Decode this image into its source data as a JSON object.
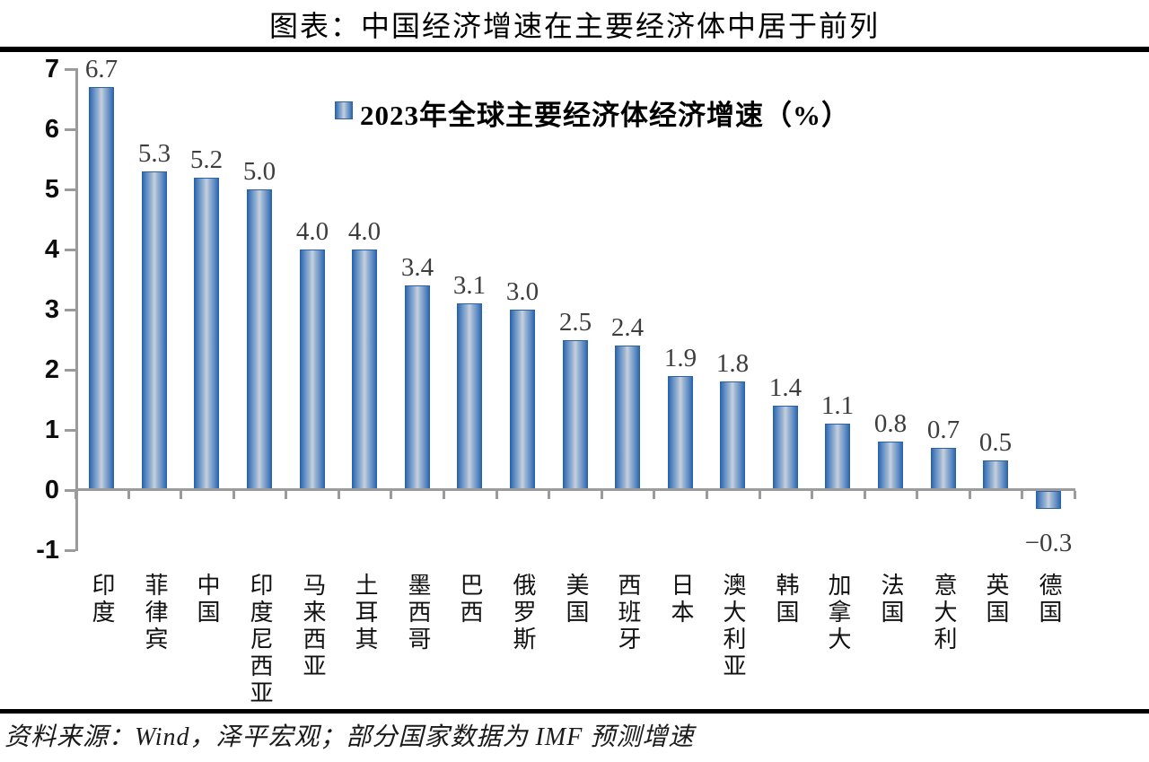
{
  "page_title": "图表：中国经济增速在主要经济体中居于前列",
  "chart_data": {
    "type": "bar",
    "title": "图表：中国经济增速在主要经济体中居于前列",
    "legend": "2023年全球主要经济体经济增速（%）",
    "legend_position": "top-center",
    "categories": [
      "印度",
      "菲律宾",
      "中国",
      "印度尼西亚",
      "马来西亚",
      "土耳其",
      "墨西哥",
      "巴西",
      "俄罗斯",
      "美国",
      "西班牙",
      "日本",
      "澳大利亚",
      "韩国",
      "加拿大",
      "法国",
      "意大利",
      "英国",
      "德国"
    ],
    "values": [
      6.7,
      5.3,
      5.2,
      5.0,
      4.0,
      4.0,
      3.4,
      3.1,
      3.0,
      2.5,
      2.4,
      1.9,
      1.8,
      1.4,
      1.1,
      0.8,
      0.7,
      0.5,
      -0.3
    ],
    "value_labels": [
      "6.7",
      "5.3",
      "5.2",
      "5.0",
      "4.0",
      "4.0",
      "3.4",
      "3.1",
      "3.0",
      "2.5",
      "2.4",
      "1.9",
      "1.8",
      "1.4",
      "1.1",
      "0.8",
      "0.7",
      "0.5",
      "−0.3"
    ],
    "ylim": [
      -1,
      7
    ],
    "yticks": [
      7,
      6,
      5,
      4,
      3,
      2,
      1,
      0,
      -1
    ],
    "xlabel": "",
    "ylabel": "",
    "grid": false,
    "bar_color": "#2f68b2",
    "bar_highlight_color": "#c6d1e0",
    "bar_border_color": "#2c63a8",
    "axis_color": "#9b9b9b",
    "value_label_color": "#3d3d3d"
  },
  "footer": {
    "source_text": "资料来源：Wind，泽平宏观；部分国家数据为 IMF 预测增速"
  }
}
